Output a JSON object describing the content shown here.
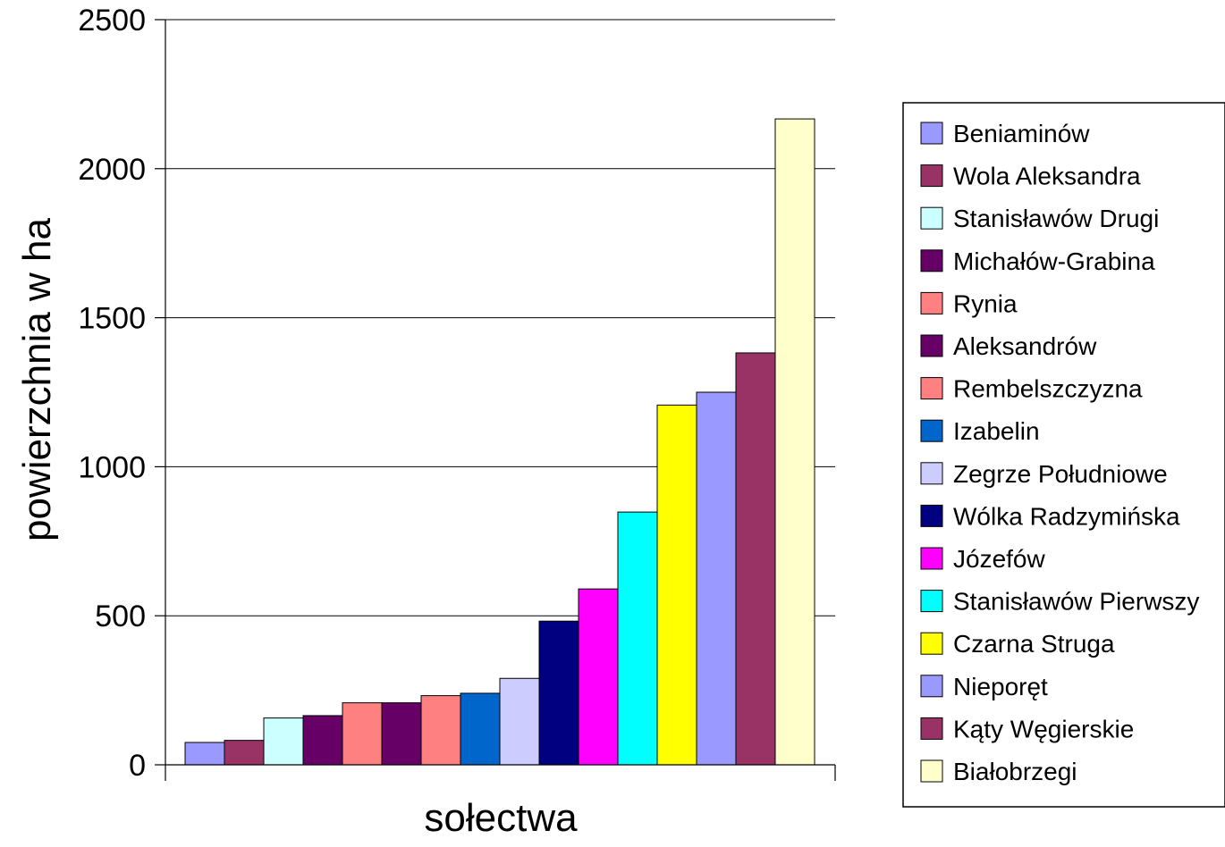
{
  "chart_data": {
    "type": "bar",
    "title": "",
    "xlabel": "sołectwa",
    "ylabel": "powierzchnia w ha",
    "ylim": [
      0,
      2500
    ],
    "yticks": [
      0,
      500,
      1000,
      1500,
      2000,
      2500
    ],
    "grid": "horizontal",
    "legend_position": "right",
    "series": [
      {
        "name": "Beniaminów",
        "value": 75,
        "color": "#9999FF"
      },
      {
        "name": "Wola Aleksandra",
        "value": 82,
        "color": "#993366"
      },
      {
        "name": "Stanisławów Drugi",
        "value": 157,
        "color": "#CCFFFF"
      },
      {
        "name": "Michałów-Grabina",
        "value": 165,
        "color": "#660066"
      },
      {
        "name": "Rynia",
        "value": 208,
        "color": "#FF8080"
      },
      {
        "name": "Aleksandrów",
        "value": 208,
        "color": "#660066"
      },
      {
        "name": "Rembelszczyzna",
        "value": 232,
        "color": "#FF8080"
      },
      {
        "name": "Izabelin",
        "value": 240,
        "color": "#0066CC"
      },
      {
        "name": "Zegrze Południowe",
        "value": 290,
        "color": "#CCCCFF"
      },
      {
        "name": "Wólka Radzymińska",
        "value": 482,
        "color": "#000080"
      },
      {
        "name": "Józefów",
        "value": 590,
        "color": "#FF00FF"
      },
      {
        "name": "Stanisławów Pierwszy",
        "value": 848,
        "color": "#00FFFF"
      },
      {
        "name": "Czarna Struga",
        "value": 1207,
        "color": "#FFFF00"
      },
      {
        "name": "Nieporęt",
        "value": 1250,
        "color": "#9999FF"
      },
      {
        "name": "Kąty Węgierskie",
        "value": 1382,
        "color": "#993366"
      },
      {
        "name": "Białobrzegi",
        "value": 2167,
        "color": "#FFFFCC"
      }
    ]
  }
}
